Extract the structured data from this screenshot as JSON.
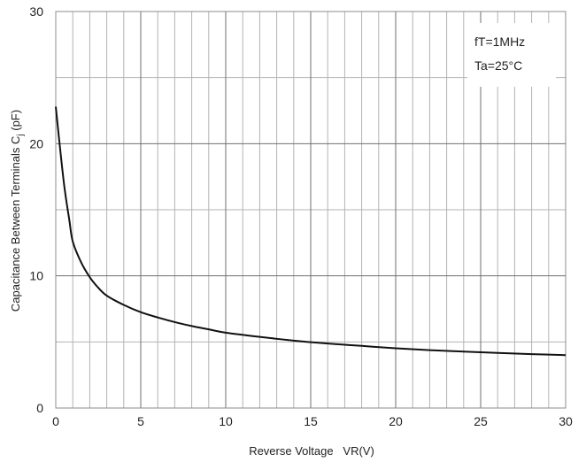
{
  "chart_data": {
    "type": "line",
    "xlabel": "Reverse Voltage   VR(V)",
    "ylabel_main": "Capacitance Between Terminals C",
    "ylabel_sub": "j",
    "ylabel_unit": " (pF)",
    "xlim": [
      0,
      30
    ],
    "ylim": [
      0,
      30
    ],
    "x_ticks": [
      0,
      5,
      10,
      15,
      20,
      25,
      30
    ],
    "y_ticks": [
      0,
      10,
      20,
      30
    ],
    "x_minor_step": 1,
    "y_minor_step": 5,
    "grid": true,
    "annotations": [
      "fT=1MHz",
      "Ta=25°C"
    ],
    "annotation_placement": "top-right",
    "line_color": "#111111",
    "grid_color": "#b3b3b3",
    "series": [
      {
        "x": [
          0,
          0.2,
          0.5,
          0.8,
          1.0,
          1.5,
          2.0,
          2.5,
          3.0,
          4.0,
          5.0,
          6.0,
          7.0,
          8.0,
          9.0,
          10.0,
          12.0,
          14.0,
          16.0,
          18.0,
          20.0,
          22.0,
          24.0,
          26.0,
          28.0,
          30.0
        ],
        "y": [
          22.8,
          20.3,
          16.8,
          14.2,
          12.6,
          11.0,
          9.9,
          9.1,
          8.5,
          7.8,
          7.25,
          6.85,
          6.5,
          6.2,
          5.95,
          5.7,
          5.38,
          5.1,
          4.88,
          4.7,
          4.52,
          4.38,
          4.27,
          4.17,
          4.08,
          4.0
        ]
      }
    ]
  }
}
